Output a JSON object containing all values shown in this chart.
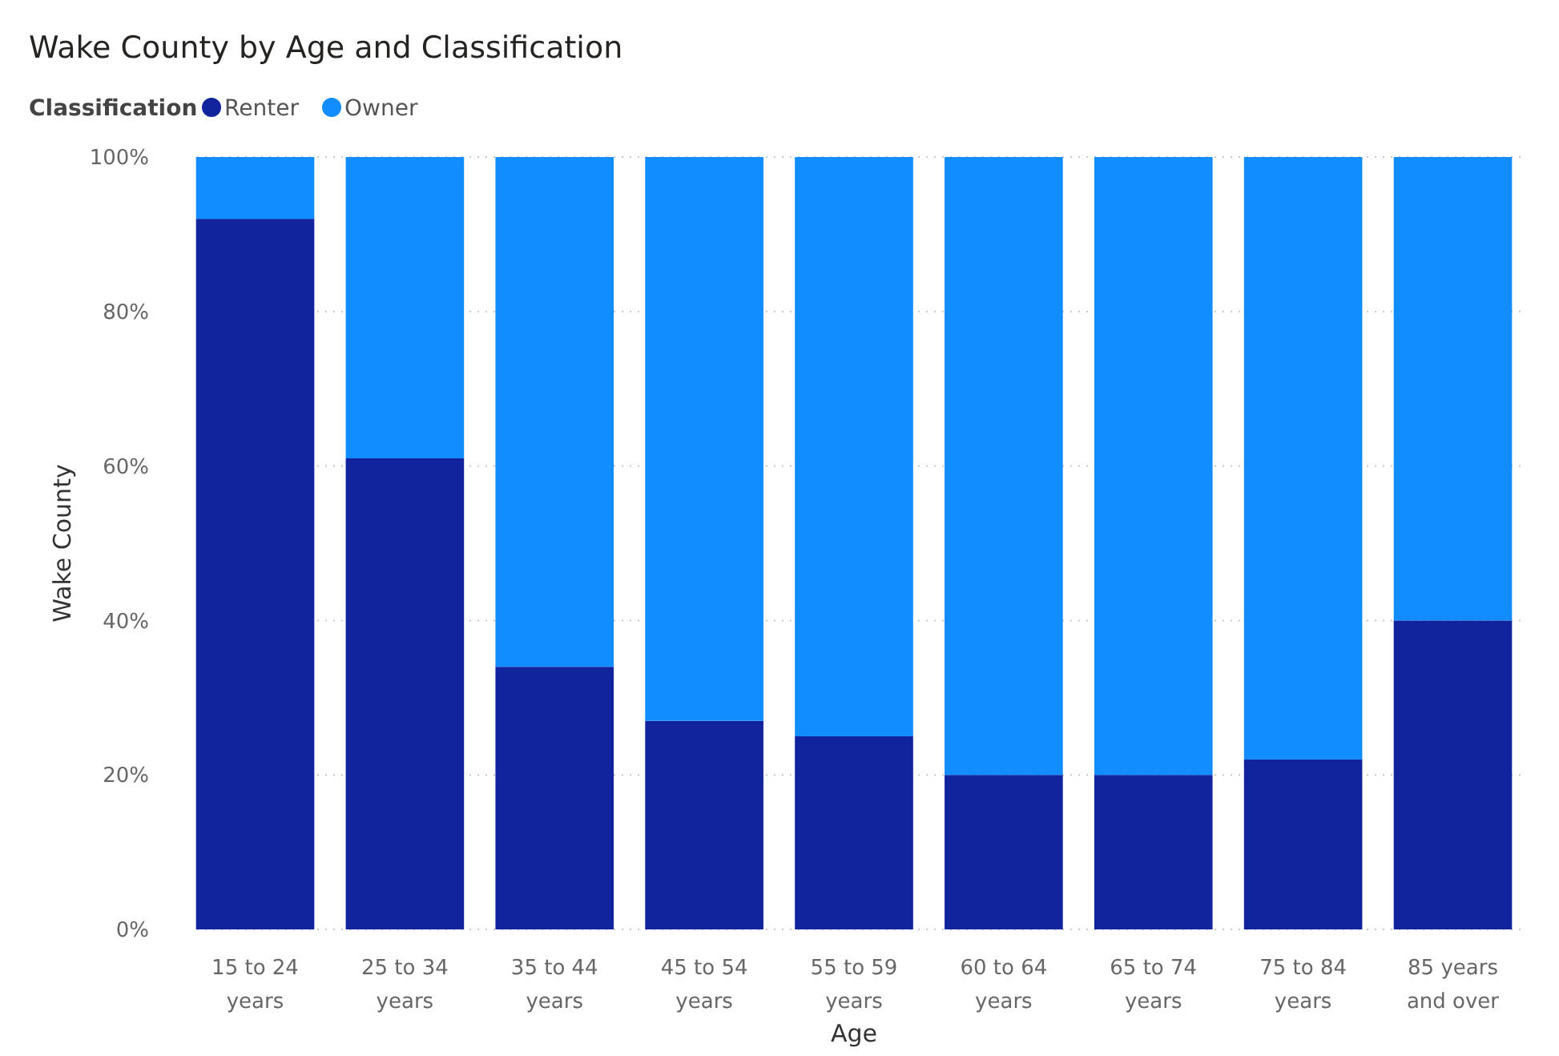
{
  "chart_data": {
    "type": "bar",
    "title": "Wake County by Age and Classification",
    "xlabel": "Age",
    "ylabel": "Wake County",
    "legend_title": "Classification",
    "legend": "top left",
    "stacked": true,
    "grid": "y",
    "categories": [
      "15 to 24 years",
      "25 to 34 years",
      "35 to 44 years",
      "45 to 54 years",
      "55 to 59 years",
      "60 to 64 years",
      "65 to 74 years",
      "75 to 84 years",
      "85 years and over"
    ],
    "series": [
      {
        "name": "Renter",
        "color": "#12239e",
        "values": [
          92,
          61,
          34,
          27,
          25,
          20,
          20,
          22,
          40
        ]
      },
      {
        "name": "Owner",
        "color": "#118dff",
        "values": [
          8,
          39,
          66,
          73,
          75,
          80,
          80,
          78,
          60
        ]
      }
    ],
    "ylim": [
      0,
      100
    ],
    "yticks": [
      {
        "value": 0,
        "label": "0%"
      },
      {
        "value": 20,
        "label": "20%"
      },
      {
        "value": 40,
        "label": "40%"
      },
      {
        "value": 60,
        "label": "60%"
      },
      {
        "value": 80,
        "label": "80%"
      },
      {
        "value": 100,
        "label": "100%"
      }
    ]
  }
}
